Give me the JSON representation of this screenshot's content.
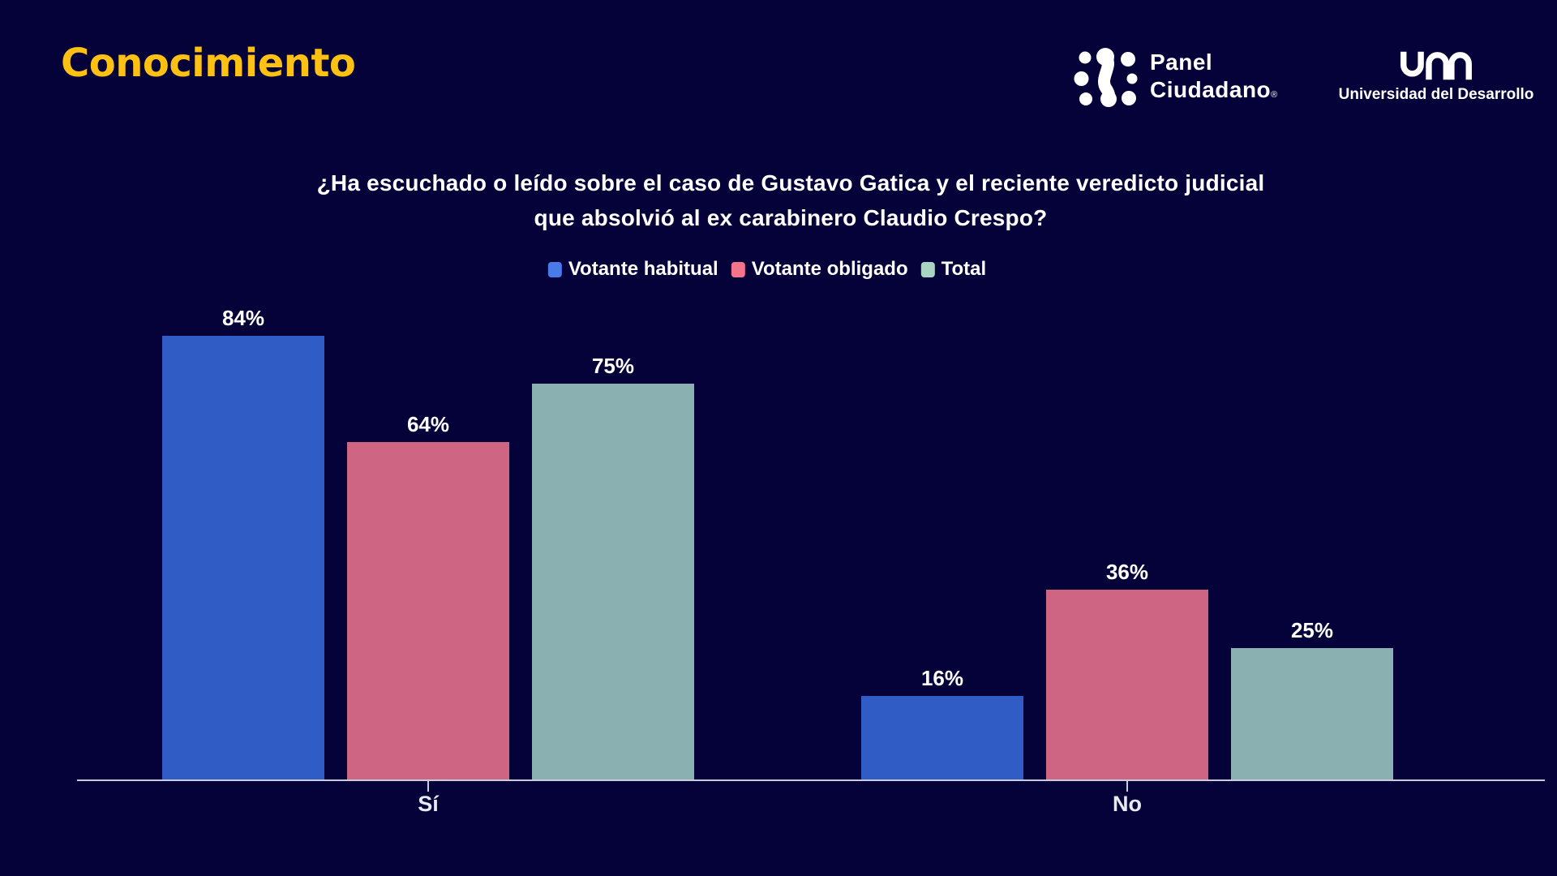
{
  "page": {
    "background": "#050239"
  },
  "header": {
    "title": "Conocimiento",
    "title_color": "#FDC113",
    "logos": {
      "panel_ciudadano": {
        "line1": "Panel",
        "line2": "Ciudadano",
        "registered": "®"
      },
      "udd": {
        "caption": "Universidad del Desarrollo"
      }
    }
  },
  "chart_data": {
    "type": "bar",
    "title": "¿Ha escuchado o leído sobre el caso de Gustavo Gatica y el reciente veredicto judicial que absolvió al ex carabinero Claudio Crespo?",
    "title_lines": [
      "¿Ha escuchado o leído sobre el caso de Gustavo Gatica y el reciente veredicto judicial",
      "que absolvió al ex carabinero Claudio Crespo?"
    ],
    "categories": [
      "Sí",
      "No"
    ],
    "series": [
      {
        "name": "Votante habitual",
        "values": [
          84,
          16
        ],
        "bar_color": "#2F5CC5",
        "legend_color": "#4A79E8"
      },
      {
        "name": "Votante obligado",
        "values": [
          64,
          36
        ],
        "bar_color": "#CE6683",
        "legend_color": "#F3738C"
      },
      {
        "name": "Total",
        "values": [
          75,
          25
        ],
        "bar_color": "#8BB0B2",
        "legend_color": "#A9D4C4"
      }
    ],
    "value_suffix": "%",
    "ylim": [
      0,
      100
    ],
    "grid": false,
    "legend_position": "top-center",
    "axis_color": "#C9CBDE",
    "value_label_color": "#FFFFFF",
    "category_label_color": "#E8E9F2"
  }
}
